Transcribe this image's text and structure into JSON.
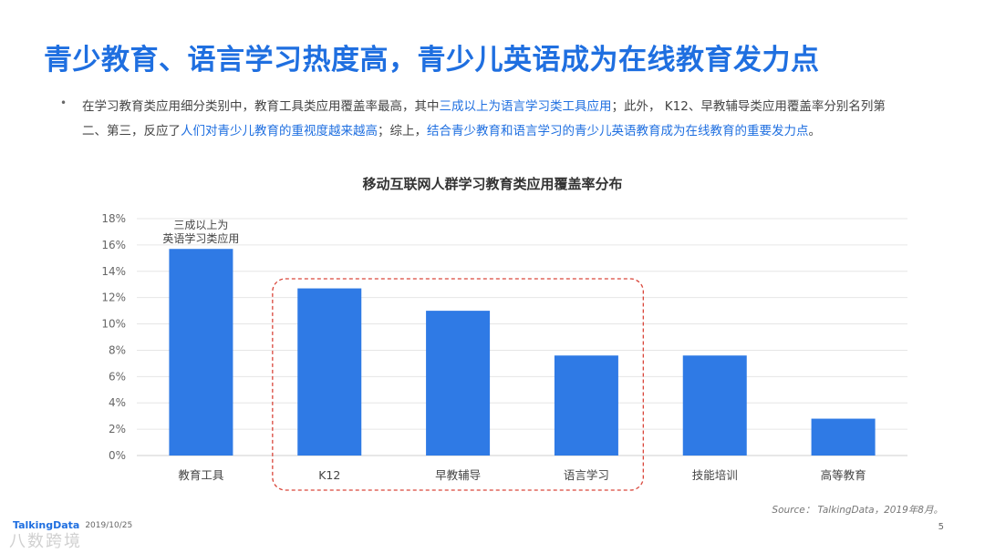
{
  "title": "青少教育、语言学习热度高，青少儿英语成为在线教育发力点",
  "bullet": {
    "part1": "在学习教育类应用细分类别中，教育工具类应用覆盖率最高，其中",
    "highlight1": "三成以上为语言学习类工具应用",
    "part2": "；此外， K12、早教辅导类应用覆盖率分别名列第二、第三，反应了",
    "highlight2": "人们对青少儿教育的重视度越来越高",
    "part3": "；综上，",
    "highlight3": "结合青少教育和语言学习的青少儿英语教育成为在线教育的重要发力点",
    "part4": "。"
  },
  "chart_data": {
    "type": "bar",
    "title": "移动互联网人群学习教育类应用覆盖率分布",
    "categories": [
      "教育工具",
      "K12",
      "早教辅导",
      "语言学习",
      "技能培训",
      "高等教育"
    ],
    "values": [
      15.7,
      12.7,
      11.0,
      7.6,
      7.6,
      2.8
    ],
    "unit": "%",
    "ylim": [
      0,
      18
    ],
    "yticks": [
      "0%",
      "2%",
      "4%",
      "6%",
      "8%",
      "10%",
      "12%",
      "14%",
      "16%",
      "18%"
    ],
    "ytick_values": [
      0,
      2,
      4,
      6,
      8,
      10,
      12,
      14,
      16,
      18
    ],
    "bar_color": "#2f7ae5",
    "grid": true,
    "annotation": {
      "category": "教育工具",
      "lines": [
        "三成以上为",
        "英语学习类应用"
      ]
    },
    "highlight_box": {
      "categories": [
        "K12",
        "早教辅导",
        "语言学习"
      ],
      "color": "#d9463a"
    }
  },
  "source": "Source： TalkingData，2019年8月。",
  "footer": {
    "logo": "TalkingData",
    "date": "2019/10/25",
    "page": "5"
  },
  "watermark": "八数跨境"
}
